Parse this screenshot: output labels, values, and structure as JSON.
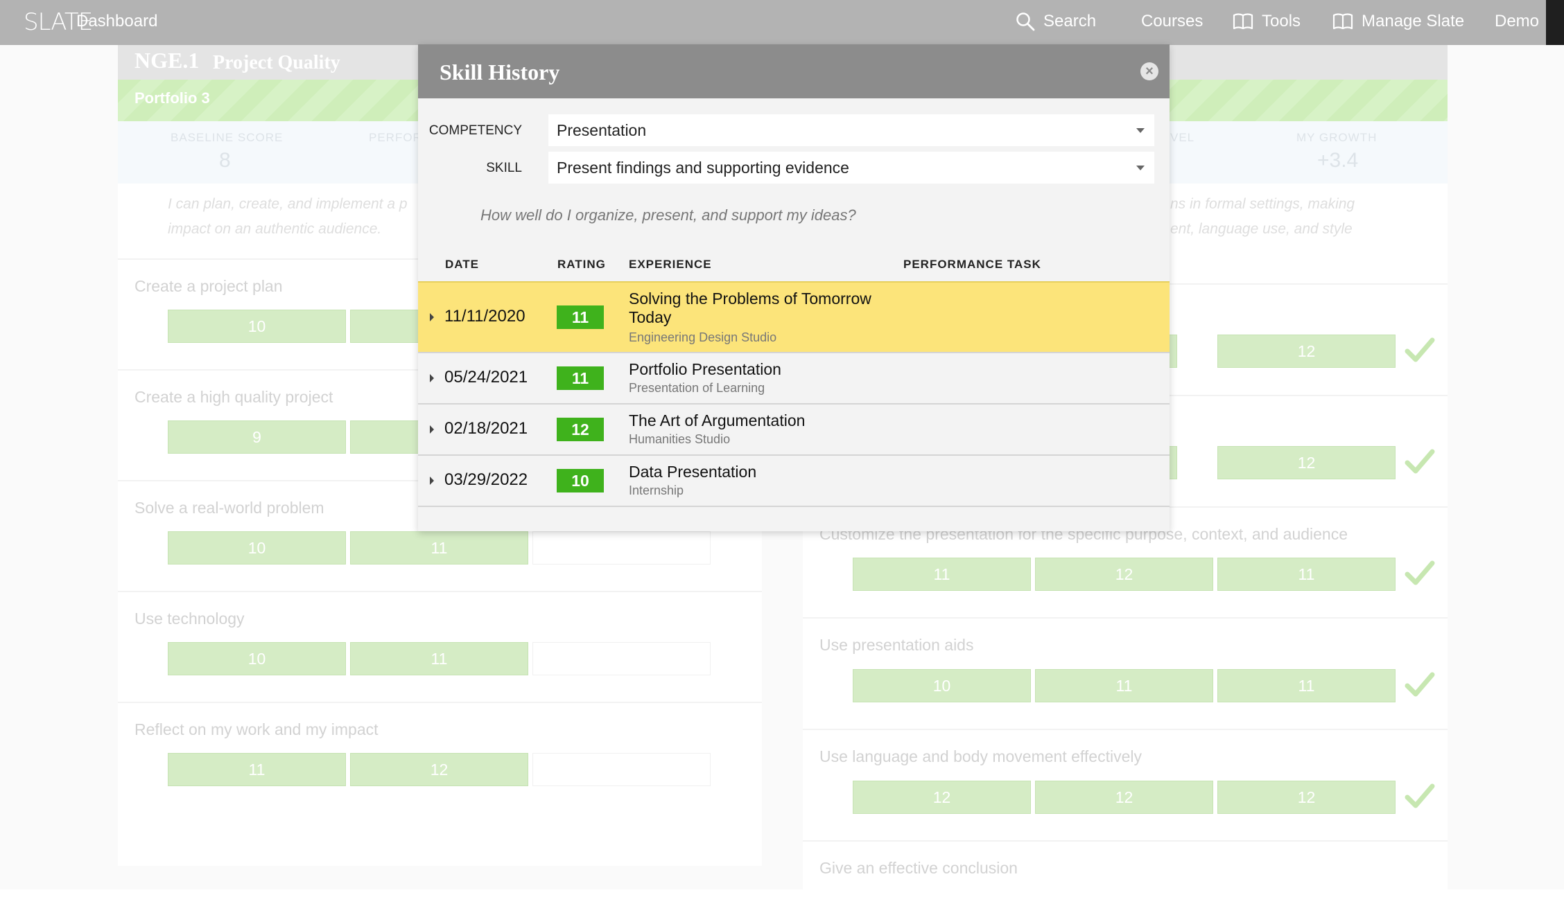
{
  "nav": {
    "logo": "SLATE",
    "dashboard": "Dashboard",
    "search": "Search",
    "courses": "Courses",
    "tools": "Tools",
    "manage": "Manage Slate",
    "user": "Demo"
  },
  "background": {
    "left": {
      "code": "NGE.1",
      "title": "Project Quality",
      "portfolio": "Portfolio 3",
      "baseline_label": "BASELINE SCORE",
      "baseline_value": "8",
      "perf_label": "PERFOR",
      "description": [
        "I can plan, create, and implement a p",
        "impact on an authentic audience."
      ],
      "skills": [
        {
          "label": "Create a project plan",
          "scores": [
            "10",
            ""
          ]
        },
        {
          "label": "Create a high quality project",
          "scores": [
            "9",
            ""
          ]
        },
        {
          "label": "Solve a real-world problem",
          "scores": [
            "10",
            "11"
          ]
        },
        {
          "label": "Use technology",
          "scores": [
            "10",
            "11"
          ]
        },
        {
          "label": "Reflect on my work and my impact",
          "scores": [
            "11",
            "12"
          ]
        }
      ]
    },
    "right": {
      "level_label": "VEL",
      "growth_label": "MY GROWTH",
      "growth_value": "+3.4",
      "description": [
        "ns in formal settings, making",
        "ent, language use, and style"
      ],
      "skills": [
        {
          "label": "",
          "scores": [
            "12"
          ]
        },
        {
          "label": "",
          "scores": [
            "12"
          ]
        },
        {
          "label": "Customize the presentation for the specific purpose, context, and audience",
          "scores": [
            "11",
            "12",
            "11"
          ]
        },
        {
          "label": "Use presentation aids",
          "scores": [
            "10",
            "11",
            "11"
          ]
        },
        {
          "label": "Use language and body movement effectively",
          "scores": [
            "12",
            "12",
            "12"
          ]
        },
        {
          "label": "Give an effective conclusion",
          "scores": []
        }
      ]
    }
  },
  "modal": {
    "title": "Skill History",
    "competency_label": "COMPETENCY",
    "competency_value": "Presentation",
    "skill_label": "SKILL",
    "skill_value": "Present findings and supporting evidence",
    "question": "How well do I organize, present, and support my ideas?",
    "columns": {
      "date": "DATE",
      "rating": "RATING",
      "experience": "EXPERIENCE",
      "task": "PERFORMANCE TASK"
    },
    "rows": [
      {
        "date": "11/11/2020",
        "rating": "11",
        "title": "Solving the Problems of Tomorrow Today",
        "subtitle": "Engineering Design Studio",
        "highlight": true
      },
      {
        "date": "05/24/2021",
        "rating": "11",
        "title": "Portfolio Presentation",
        "subtitle": "Presentation of Learning"
      },
      {
        "date": "02/18/2021",
        "rating": "12",
        "title": "The Art of Argumentation",
        "subtitle": "Humanities Studio"
      },
      {
        "date": "03/29/2022",
        "rating": "10",
        "title": "Data Presentation",
        "subtitle": "Internship"
      }
    ]
  }
}
